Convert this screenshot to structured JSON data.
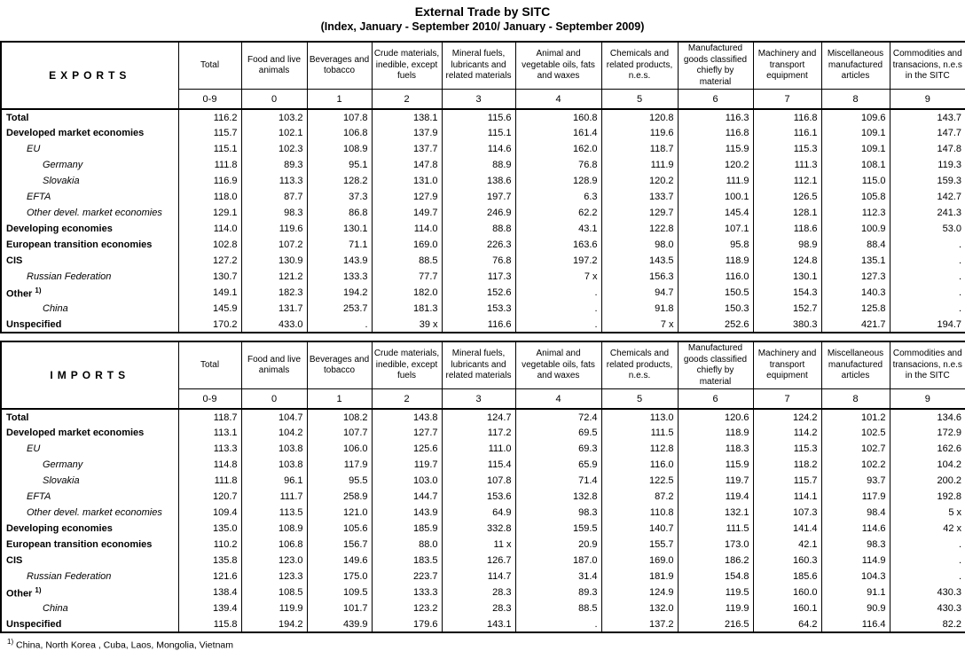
{
  "title": "External Trade by SITC",
  "subtitle": "(Index, January - September 2010/ January - September 2009)",
  "columns": {
    "group_headers": [
      "Total",
      "Food and live animals",
      "Beverages and tobacco",
      "Crude materials, inedible, except fuels",
      "Mineral fuels, lubricants and related materials",
      "Animal and vegetable oils, fats and waxes",
      "Chemicals and related products, n.e.s.",
      "Manufactured goods classified chiefly by material",
      "Machinery and transport equipment",
      "Miscellaneous manufactured articles",
      "Commodities and transacions, n.e.s in the SITC"
    ],
    "codes": [
      "0-9",
      "0",
      "1",
      "2",
      "3",
      "4",
      "5",
      "6",
      "7",
      "8",
      "9"
    ]
  },
  "tables": [
    {
      "title": "EXPORTS",
      "rows": [
        {
          "label": "Total",
          "style": "bold",
          "indent": 0,
          "values": [
            "116.2",
            "103.2",
            "107.8",
            "138.1",
            "115.6",
            "160.8",
            "120.8",
            "116.3",
            "116.8",
            "109.6",
            "143.7"
          ]
        },
        {
          "label": "Developed market economies",
          "style": "bold",
          "indent": 0,
          "values": [
            "115.7",
            "102.1",
            "106.8",
            "137.9",
            "115.1",
            "161.4",
            "119.6",
            "116.8",
            "116.1",
            "109.1",
            "147.7"
          ]
        },
        {
          "label": "EU",
          "style": "italic",
          "indent": 1,
          "values": [
            "115.1",
            "102.3",
            "108.9",
            "137.7",
            "114.6",
            "162.0",
            "118.7",
            "115.9",
            "115.3",
            "109.1",
            "147.8"
          ]
        },
        {
          "label": "Germany",
          "style": "italic",
          "indent": 2,
          "values": [
            "111.8",
            "89.3",
            "95.1",
            "147.8",
            "88.9",
            "76.8",
            "111.9",
            "120.2",
            "111.3",
            "108.1",
            "119.3"
          ]
        },
        {
          "label": "Slovakia",
          "style": "italic",
          "indent": 2,
          "values": [
            "116.9",
            "113.3",
            "128.2",
            "131.0",
            "138.6",
            "128.9",
            "120.2",
            "111.9",
            "112.1",
            "115.0",
            "159.3"
          ]
        },
        {
          "label": "EFTA",
          "style": "italic",
          "indent": 1,
          "values": [
            "118.0",
            "87.7",
            "37.3",
            "127.9",
            "197.7",
            "6.3",
            "133.7",
            "100.1",
            "126.5",
            "105.8",
            "142.7"
          ]
        },
        {
          "label": "Other devel. market economies",
          "style": "italic",
          "indent": 1,
          "values": [
            "129.1",
            "98.3",
            "86.8",
            "149.7",
            "246.9",
            "62.2",
            "129.7",
            "145.4",
            "128.1",
            "112.3",
            "241.3"
          ]
        },
        {
          "label": "Developing economies",
          "style": "bold",
          "indent": 0,
          "values": [
            "114.0",
            "119.6",
            "130.1",
            "114.0",
            "88.8",
            "43.1",
            "122.8",
            "107.1",
            "118.6",
            "100.9",
            "53.0"
          ]
        },
        {
          "label": "European transition economies",
          "style": "bold",
          "indent": 0,
          "values": [
            "102.8",
            "107.2",
            "71.1",
            "169.0",
            "226.3",
            "163.6",
            "98.0",
            "95.8",
            "98.9",
            "88.4",
            "."
          ]
        },
        {
          "label": "CIS",
          "style": "bold",
          "indent": 0,
          "values": [
            "127.2",
            "130.9",
            "143.9",
            "88.5",
            "76.8",
            "197.2",
            "143.5",
            "118.9",
            "124.8",
            "135.1",
            "."
          ]
        },
        {
          "label": "Russian Federation",
          "style": "italic",
          "indent": 1,
          "values": [
            "130.7",
            "121.2",
            "133.3",
            "77.7",
            "117.3",
            "7 x",
            "156.3",
            "116.0",
            "130.1",
            "127.3",
            "."
          ]
        },
        {
          "label": "Other",
          "sup": "1)",
          "style": "bold",
          "indent": 0,
          "values": [
            "149.1",
            "182.3",
            "194.2",
            "182.0",
            "152.6",
            ".",
            "94.7",
            "150.5",
            "154.3",
            "140.3",
            "."
          ]
        },
        {
          "label": "China",
          "style": "italic",
          "indent": 2,
          "values": [
            "145.9",
            "131.7",
            "253.7",
            "181.3",
            "153.3",
            ".",
            "91.8",
            "150.3",
            "152.7",
            "125.8",
            "."
          ]
        },
        {
          "label": "Unspecified",
          "style": "bold",
          "indent": 0,
          "values": [
            "170.2",
            "433.0",
            ".",
            "39 x",
            "116.6",
            ".",
            "7 x",
            "252.6",
            "380.3",
            "421.7",
            "194.7"
          ]
        }
      ]
    },
    {
      "title": "IMPORTS",
      "rows": [
        {
          "label": "Total",
          "style": "bold",
          "indent": 0,
          "values": [
            "118.7",
            "104.7",
            "108.2",
            "143.8",
            "124.7",
            "72.4",
            "113.0",
            "120.6",
            "124.2",
            "101.2",
            "134.6"
          ]
        },
        {
          "label": "Developed market economies",
          "style": "bold",
          "indent": 0,
          "values": [
            "113.1",
            "104.2",
            "107.7",
            "127.7",
            "117.2",
            "69.5",
            "111.5",
            "118.9",
            "114.2",
            "102.5",
            "172.9"
          ]
        },
        {
          "label": "EU",
          "style": "italic",
          "indent": 1,
          "values": [
            "113.3",
            "103.8",
            "106.0",
            "125.6",
            "111.0",
            "69.3",
            "112.8",
            "118.3",
            "115.3",
            "102.7",
            "162.6"
          ]
        },
        {
          "label": "Germany",
          "style": "italic",
          "indent": 2,
          "values": [
            "114.8",
            "103.8",
            "117.9",
            "119.7",
            "115.4",
            "65.9",
            "116.0",
            "115.9",
            "118.2",
            "102.2",
            "104.2"
          ]
        },
        {
          "label": "Slovakia",
          "style": "italic",
          "indent": 2,
          "values": [
            "111.8",
            "96.1",
            "95.5",
            "103.0",
            "107.8",
            "71.4",
            "122.5",
            "119.7",
            "115.7",
            "93.7",
            "200.2"
          ]
        },
        {
          "label": "EFTA",
          "style": "italic",
          "indent": 1,
          "values": [
            "120.7",
            "111.7",
            "258.9",
            "144.7",
            "153.6",
            "132.8",
            "87.2",
            "119.4",
            "114.1",
            "117.9",
            "192.8"
          ]
        },
        {
          "label": "Other devel. market economies",
          "style": "italic",
          "indent": 1,
          "values": [
            "109.4",
            "113.5",
            "121.0",
            "143.9",
            "64.9",
            "98.3",
            "110.8",
            "132.1",
            "107.3",
            "98.4",
            "5 x"
          ]
        },
        {
          "label": "Developing economies",
          "style": "bold",
          "indent": 0,
          "values": [
            "135.0",
            "108.9",
            "105.6",
            "185.9",
            "332.8",
            "159.5",
            "140.7",
            "111.5",
            "141.4",
            "114.6",
            "42 x"
          ]
        },
        {
          "label": "European transition economies",
          "style": "bold",
          "indent": 0,
          "values": [
            "110.2",
            "106.8",
            "156.7",
            "88.0",
            "11 x",
            "20.9",
            "155.7",
            "173.0",
            "42.1",
            "98.3",
            "."
          ]
        },
        {
          "label": "CIS",
          "style": "bold",
          "indent": 0,
          "values": [
            "135.8",
            "123.0",
            "149.6",
            "183.5",
            "126.7",
            "187.0",
            "169.0",
            "186.2",
            "160.3",
            "114.9",
            "."
          ]
        },
        {
          "label": "Russian Federation",
          "style": "italic",
          "indent": 1,
          "values": [
            "121.6",
            "123.3",
            "175.0",
            "223.7",
            "114.7",
            "31.4",
            "181.9",
            "154.8",
            "185.6",
            "104.3",
            "."
          ]
        },
        {
          "label": "Other",
          "sup": "1)",
          "style": "bold",
          "indent": 0,
          "values": [
            "138.4",
            "108.5",
            "109.5",
            "133.3",
            "28.3",
            "89.3",
            "124.9",
            "119.5",
            "160.0",
            "91.1",
            "430.3"
          ]
        },
        {
          "label": "China",
          "style": "italic",
          "indent": 2,
          "values": [
            "139.4",
            "119.9",
            "101.7",
            "123.2",
            "28.3",
            "88.5",
            "132.0",
            "119.9",
            "160.1",
            "90.9",
            "430.3"
          ]
        },
        {
          "label": "Unspecified",
          "style": "bold",
          "indent": 0,
          "values": [
            "115.8",
            "194.2",
            "439.9",
            "179.6",
            "143.1",
            ".",
            "137.2",
            "216.5",
            "64.2",
            "116.4",
            "82.2"
          ]
        }
      ]
    }
  ],
  "footnote_marker": "1)",
  "footnote": "China, North Korea , Cuba, Laos, Mongolia, Vietnam"
}
